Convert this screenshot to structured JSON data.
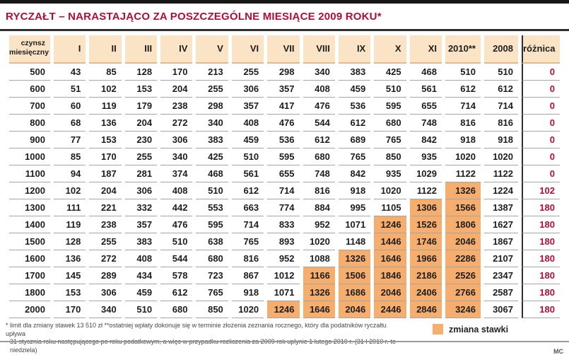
{
  "title": "RYCZAŁT – NARASTAJĄCO ZA POSZCZEGÓLNE MIESIĄCE 2009 ROKU*",
  "chart_data": {
    "type": "table",
    "columns": [
      "czynsz miesięczny",
      "I",
      "II",
      "III",
      "IV",
      "V",
      "VI",
      "VII",
      "VIII",
      "IX",
      "X",
      "XI",
      "2010**",
      "2008",
      "różnica"
    ],
    "rows": [
      {
        "rent": 500,
        "months": [
          43,
          85,
          128,
          170,
          213,
          255,
          298,
          340,
          383,
          425,
          468
        ],
        "y2010": 510,
        "y2008": 510,
        "diff": 0,
        "highlight": []
      },
      {
        "rent": 600,
        "months": [
          51,
          102,
          153,
          204,
          255,
          306,
          357,
          408,
          459,
          510,
          561
        ],
        "y2010": 612,
        "y2008": 612,
        "diff": 0,
        "highlight": []
      },
      {
        "rent": 700,
        "months": [
          60,
          119,
          179,
          238,
          298,
          357,
          417,
          476,
          536,
          595,
          655
        ],
        "y2010": 714,
        "y2008": 714,
        "diff": 0,
        "highlight": []
      },
      {
        "rent": 800,
        "months": [
          68,
          136,
          204,
          272,
          340,
          408,
          476,
          544,
          612,
          680,
          748
        ],
        "y2010": 816,
        "y2008": 816,
        "diff": 0,
        "highlight": []
      },
      {
        "rent": 900,
        "months": [
          77,
          153,
          230,
          306,
          383,
          459,
          536,
          612,
          689,
          765,
          842
        ],
        "y2010": 918,
        "y2008": 918,
        "diff": 0,
        "highlight": []
      },
      {
        "rent": 1000,
        "months": [
          85,
          170,
          255,
          340,
          425,
          510,
          595,
          680,
          765,
          850,
          935
        ],
        "y2010": 1020,
        "y2008": 1020,
        "diff": 0,
        "highlight": []
      },
      {
        "rent": 1100,
        "months": [
          94,
          187,
          281,
          374,
          468,
          561,
          655,
          748,
          842,
          935,
          1029
        ],
        "y2010": 1122,
        "y2008": 1122,
        "diff": 0,
        "highlight": []
      },
      {
        "rent": 1200,
        "months": [
          102,
          204,
          306,
          408,
          510,
          612,
          714,
          816,
          918,
          1020,
          1122
        ],
        "y2010": 1326,
        "y2008": 1224,
        "diff": 102,
        "highlight": [
          11
        ]
      },
      {
        "rent": 1300,
        "months": [
          111,
          221,
          332,
          442,
          553,
          663,
          774,
          884,
          995,
          1105,
          1306
        ],
        "y2010": 1566,
        "y2008": 1387,
        "diff": 180,
        "highlight": [
          10,
          11
        ]
      },
      {
        "rent": 1400,
        "months": [
          119,
          238,
          357,
          476,
          595,
          714,
          833,
          952,
          1071,
          1246,
          1526
        ],
        "y2010": 1806,
        "y2008": 1627,
        "diff": 180,
        "highlight": [
          9,
          10,
          11
        ]
      },
      {
        "rent": 1500,
        "months": [
          128,
          255,
          383,
          510,
          638,
          765,
          893,
          1020,
          1148,
          1446,
          1746
        ],
        "y2010": 2046,
        "y2008": 1867,
        "diff": 180,
        "highlight": [
          9,
          10,
          11
        ]
      },
      {
        "rent": 1600,
        "months": [
          136,
          272,
          408,
          544,
          680,
          816,
          952,
          1088,
          1326,
          1646,
          1966
        ],
        "y2010": 2286,
        "y2008": 2107,
        "diff": 180,
        "highlight": [
          8,
          9,
          10,
          11
        ]
      },
      {
        "rent": 1700,
        "months": [
          145,
          289,
          434,
          578,
          723,
          867,
          1012,
          1166,
          1506,
          1846,
          2186
        ],
        "y2010": 2526,
        "y2008": 2347,
        "diff": 180,
        "highlight": [
          7,
          8,
          9,
          10,
          11
        ]
      },
      {
        "rent": 1800,
        "months": [
          153,
          306,
          459,
          612,
          765,
          918,
          1071,
          1326,
          1686,
          2046,
          2406
        ],
        "y2010": 2766,
        "y2008": 2587,
        "diff": 180,
        "highlight": [
          7,
          8,
          9,
          10,
          11
        ]
      },
      {
        "rent": 2000,
        "months": [
          170,
          340,
          510,
          680,
          850,
          1020,
          1246,
          1646,
          2046,
          2446,
          2846
        ],
        "y2010": 3246,
        "y2008": 3067,
        "diff": 180,
        "highlight": [
          6,
          7,
          8,
          9,
          10,
          11
        ]
      }
    ],
    "legend_position": "bottom-right",
    "highlight_meaning": "zmiana stawki"
  },
  "legend": {
    "label": "zmiana stawki",
    "swatch_color": "#f6ae6e"
  },
  "footnote": {
    "line1": "* limit dla zmiany stawek 13 510 zł **ostatniej wpłaty dokonuje się w terminie złożenia zeznania rocznego, który dla podatników ryczałtu upływa",
    "line2": "31 stycznia roku następującego po roku podatkowym, a więc w przypadku rozliczenia za 2009 rok upłynie 1 lutego 2010 r. (31 I 2010 r. to niedziela)"
  },
  "credit": "MC",
  "colors": {
    "accent_crimson": "#b00d3c",
    "header_fill": "#fbe3c5",
    "header_border": "#ddbb8f",
    "highlight_fill": "#f6ae6e",
    "row_border": "#a3a3a3",
    "top_bar": "#161616"
  }
}
